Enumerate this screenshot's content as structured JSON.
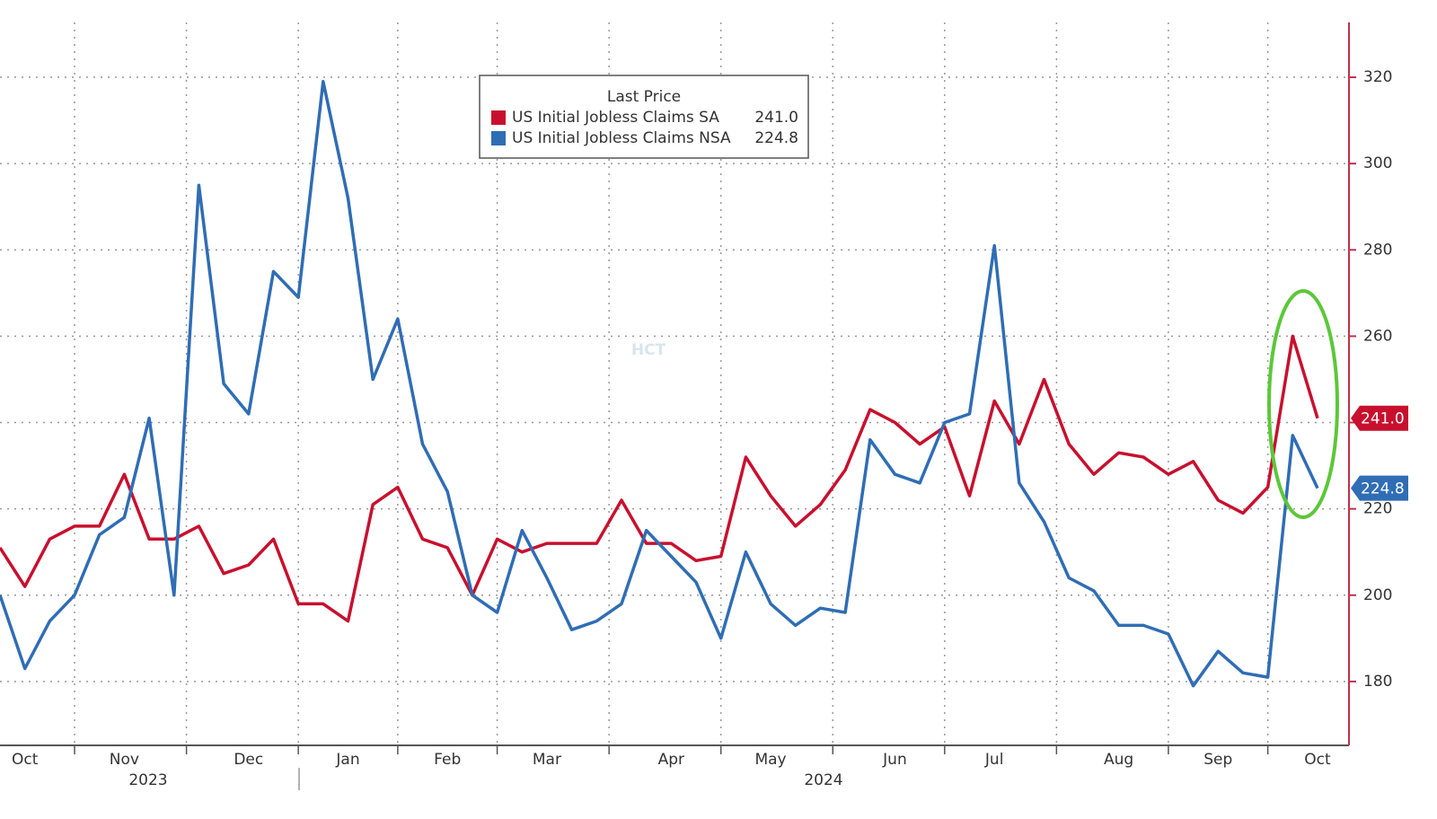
{
  "chart_data": {
    "type": "line",
    "legend_title": "Last Price",
    "watermark": "HCT",
    "categories": [
      null,
      "Oct",
      null,
      null,
      null,
      "Nov",
      null,
      null,
      null,
      null,
      "Dec",
      null,
      null,
      null,
      "Jan",
      null,
      null,
      null,
      "Feb",
      null,
      null,
      null,
      "Mar",
      null,
      null,
      null,
      null,
      "Apr",
      null,
      null,
      null,
      "May",
      null,
      null,
      null,
      null,
      "Jun",
      null,
      null,
      null,
      "Jul",
      null,
      null,
      null,
      null,
      "Aug",
      null,
      null,
      null,
      "Sep",
      null,
      null,
      null,
      "Oct"
    ],
    "year_labels": [
      "2023",
      "2024"
    ],
    "series": [
      {
        "name": "US Initial Jobless Claims SA",
        "color": "#c8102e",
        "last_label": "241.0",
        "values": [
          211,
          202,
          213,
          216,
          216,
          228,
          213,
          213,
          216,
          205,
          207,
          213,
          198,
          198,
          194,
          221,
          225,
          213,
          211,
          200,
          213,
          210,
          212,
          212,
          212,
          222,
          212,
          212,
          208,
          209,
          232,
          223,
          216,
          221,
          229,
          243,
          240,
          235,
          239,
          223,
          245,
          235,
          250,
          235,
          228,
          233,
          232,
          228,
          231,
          222,
          219,
          225,
          260,
          241.0
        ]
      },
      {
        "name": "US Initial Jobless Claims NSA",
        "color": "#2f6db5",
        "last_label": "224.8",
        "values": [
          200,
          183,
          194,
          200,
          214,
          218,
          241,
          200,
          295,
          249,
          242,
          275,
          269,
          319,
          292,
          250,
          264,
          235,
          224,
          200,
          196,
          215,
          204,
          192,
          194,
          198,
          215,
          209,
          203,
          190,
          210,
          198,
          193,
          197,
          196,
          236,
          228,
          226,
          240,
          242,
          281,
          226,
          217,
          204,
          201,
          193,
          193,
          191,
          179,
          187,
          182,
          181,
          237,
          224.8
        ]
      }
    ],
    "ylim": [
      165.2,
      332.7
    ],
    "yticks": [
      180,
      200,
      220,
      240,
      260,
      280,
      300,
      320
    ],
    "grid": true
  }
}
